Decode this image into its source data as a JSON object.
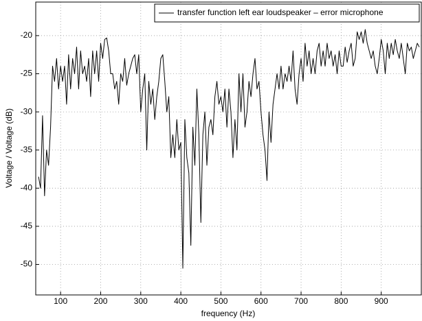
{
  "chart_data": {
    "type": "line",
    "xlabel": "frequency (Hz)",
    "ylabel": "Voltage / Voltage (dB)",
    "xlim": [
      38,
      1000
    ],
    "ylim": [
      -54,
      -15.6
    ],
    "xticks": [
      100,
      200,
      300,
      400,
      500,
      600,
      700,
      800,
      900
    ],
    "yticks": [
      -50,
      -45,
      -40,
      -35,
      -30,
      -25,
      -20
    ],
    "grid": true,
    "legend": "upper right",
    "x": [
      45,
      50,
      55,
      60,
      65,
      70,
      75,
      80,
      85,
      90,
      95,
      100,
      105,
      110,
      115,
      120,
      125,
      130,
      135,
      140,
      145,
      150,
      155,
      160,
      165,
      170,
      175,
      180,
      185,
      190,
      195,
      200,
      205,
      210,
      215,
      220,
      225,
      230,
      235,
      240,
      245,
      250,
      255,
      260,
      265,
      270,
      275,
      280,
      285,
      290,
      295,
      300,
      305,
      310,
      315,
      320,
      325,
      330,
      335,
      340,
      345,
      350,
      355,
      360,
      365,
      370,
      375,
      380,
      385,
      390,
      395,
      400,
      405,
      410,
      415,
      420,
      425,
      430,
      435,
      440,
      445,
      450,
      455,
      460,
      465,
      470,
      475,
      480,
      485,
      490,
      495,
      500,
      505,
      510,
      515,
      520,
      525,
      530,
      535,
      540,
      545,
      550,
      555,
      560,
      565,
      570,
      575,
      580,
      585,
      590,
      595,
      600,
      605,
      610,
      615,
      620,
      625,
      630,
      635,
      640,
      645,
      650,
      655,
      660,
      665,
      670,
      675,
      680,
      685,
      690,
      695,
      700,
      705,
      710,
      715,
      720,
      725,
      730,
      735,
      740,
      745,
      750,
      755,
      760,
      765,
      770,
      775,
      780,
      785,
      790,
      795,
      800,
      805,
      810,
      815,
      820,
      825,
      830,
      835,
      840,
      845,
      850,
      855,
      860,
      865,
      870,
      875,
      880,
      885,
      890,
      895,
      900,
      905,
      910,
      915,
      920,
      925,
      930,
      935,
      940,
      945,
      950,
      955,
      960,
      965,
      970,
      975,
      980,
      985,
      990,
      995
    ],
    "series": [
      {
        "name": "transfer function left ear loudspeaker – error microphone",
        "color": "#000000",
        "values": [
          -38.5,
          -40,
          -30.5,
          -41,
          -35,
          -37,
          -32,
          -24,
          -26,
          -23,
          -27,
          -24,
          -26,
          -24,
          -29,
          -22.5,
          -27,
          -23,
          -25,
          -21.5,
          -27,
          -22,
          -25,
          -24,
          -26,
          -23,
          -28,
          -22,
          -25,
          -22,
          -26,
          -21,
          -23,
          -20.5,
          -20.3,
          -22,
          -25,
          -25,
          -27,
          -26,
          -29,
          -25,
          -26,
          -23,
          -26.5,
          -25,
          -24,
          -23,
          -22.5,
          -25,
          -22.5,
          -30,
          -27,
          -25,
          -35,
          -26,
          -29,
          -27,
          -31,
          -28,
          -26,
          -23,
          -22.5,
          -26,
          -30,
          -28,
          -36,
          -33,
          -36,
          -31,
          -35,
          -34,
          -50.5,
          -31,
          -36,
          -38,
          -47.5,
          -32,
          -37,
          -27,
          -33,
          -44.5,
          -33,
          -30,
          -37,
          -32,
          -31,
          -33,
          -28,
          -26,
          -29,
          -28,
          -30,
          -27,
          -32,
          -27,
          -30,
          -36,
          -31,
          -35,
          -25,
          -30,
          -25,
          -32,
          -30,
          -26,
          -28,
          -25,
          -23,
          -27,
          -26,
          -30,
          -33,
          -35,
          -39,
          -30,
          -34,
          -29,
          -27,
          -25,
          -27,
          -24,
          -27,
          -25,
          -26,
          -24,
          -26,
          -22,
          -27,
          -29,
          -25,
          -23,
          -26,
          -21,
          -24,
          -22,
          -25,
          -23,
          -25,
          -22,
          -21,
          -24,
          -22,
          -24,
          -21,
          -23,
          -22,
          -24,
          -22.5,
          -25,
          -22,
          -24,
          -24,
          -21.5,
          -23.5,
          -22,
          -21,
          -24,
          -23,
          -19.5,
          -20.5,
          -19.5,
          -21,
          -19.2,
          -21,
          -22,
          -23,
          -22,
          -24,
          -25,
          -23,
          -20.5,
          -22,
          -25,
          -21,
          -23,
          -21,
          -22.5,
          -20.5,
          -22,
          -23,
          -21,
          -23,
          -25,
          -21,
          -22,
          -21.5,
          -23,
          -22,
          -21,
          -21.5
        ]
      }
    ]
  }
}
